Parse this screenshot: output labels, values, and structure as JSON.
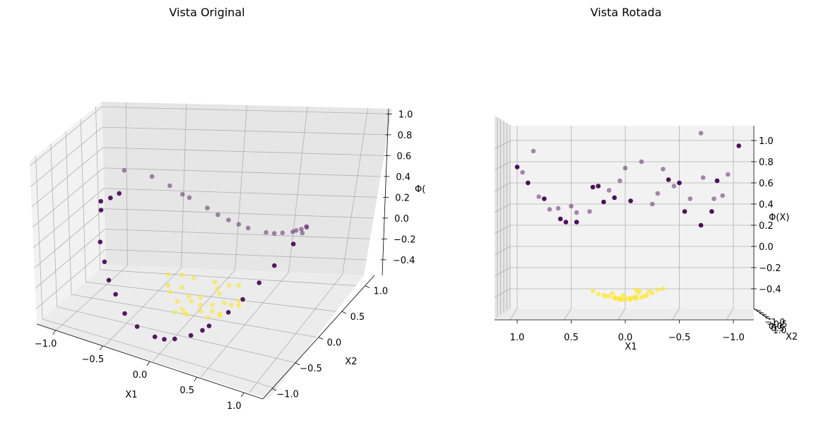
{
  "colors": {
    "class_a": "#440154",
    "class_b": "#fde725",
    "pane_left": "#f2f2f2",
    "pane_right": "#e6e6e6",
    "pane_floor": "#ececec"
  },
  "chart_data": [
    {
      "type": "scatter",
      "title": "Vista Original",
      "xlabel": "X1",
      "ylabel": "X2",
      "zlabel": "Φ(",
      "x_ticks": [
        "−1.0",
        "−0.5",
        "0.0",
        "0.5",
        "1.0"
      ],
      "y_ticks": [
        "−1.0",
        "−0.5",
        "0.0",
        "0.5",
        "1.0"
      ],
      "z_ticks": [
        "−0.4",
        "−0.2",
        "0.0",
        "0.2",
        "0.4",
        "0.6",
        "0.8",
        "1.0"
      ],
      "xlim": [
        -1.2,
        1.2
      ],
      "ylim": [
        -1.2,
        1.2
      ],
      "zlim": [
        -0.55,
        1.05
      ],
      "grid": true,
      "series": [
        {
          "points": [
            [
              -0.95,
              -0.3,
              0.9
            ],
            [
              -0.9,
              0.0,
              0.81
            ],
            [
              -0.95,
              0.2,
              0.95
            ],
            [
              -0.85,
              -0.5,
              0.97
            ],
            [
              -0.8,
              -0.6,
              0.64
            ],
            [
              -0.7,
              -0.7,
              0.49
            ],
            [
              -0.6,
              -0.8,
              0.36
            ],
            [
              -0.5,
              -0.85,
              0.25
            ],
            [
              -0.35,
              -0.95,
              0.13
            ],
            [
              -0.2,
              -0.98,
              0.04
            ],
            [
              0.0,
              -1.0,
              0.0
            ],
            [
              0.2,
              -0.98,
              0.04
            ],
            [
              0.35,
              -0.94,
              0.12
            ],
            [
              0.5,
              -0.86,
              0.25
            ],
            [
              0.65,
              -0.76,
              0.42
            ],
            [
              0.75,
              -0.66,
              0.56
            ],
            [
              0.85,
              -0.52,
              0.72
            ],
            [
              0.9,
              -0.3,
              0.81
            ],
            [
              0.95,
              0.0,
              0.9
            ],
            [
              0.9,
              0.3,
              0.81
            ],
            [
              0.8,
              0.6,
              0.64
            ],
            [
              0.7,
              0.7,
              0.49
            ],
            [
              0.55,
              0.83,
              0.3
            ],
            [
              0.4,
              0.92,
              0.16
            ],
            [
              0.2,
              0.98,
              0.04
            ],
            [
              0.0,
              1.0,
              0.0
            ],
            [
              -0.2,
              0.98,
              0.04
            ],
            [
              -0.4,
              0.92,
              0.16
            ],
            [
              -0.55,
              0.83,
              0.3
            ],
            [
              -0.7,
              0.7,
              0.49
            ],
            [
              -0.82,
              0.55,
              0.67
            ],
            [
              -0.3,
              0.95,
              0.09
            ],
            [
              0.3,
              0.95,
              0.09
            ],
            [
              0.6,
              0.8,
              0.36
            ],
            [
              0.85,
              0.5,
              0.72
            ],
            [
              -0.6,
              0.78,
              0.36
            ],
            [
              -0.92,
              -0.15,
              0.85
            ],
            [
              0.1,
              -1.0,
              0.01
            ],
            [
              -0.1,
              1.0,
              0.01
            ],
            [
              0.45,
              -0.9,
              0.2
            ]
          ]
        },
        {
          "points": [
            [
              0.0,
              0.0,
              -0.3
            ],
            [
              0.1,
              0.05,
              -0.29
            ],
            [
              -0.1,
              0.0,
              -0.29
            ],
            [
              0.05,
              -0.1,
              -0.29
            ],
            [
              -0.05,
              0.1,
              -0.29
            ],
            [
              0.15,
              -0.05,
              -0.28
            ],
            [
              -0.15,
              0.05,
              -0.28
            ],
            [
              0.2,
              0.1,
              -0.26
            ],
            [
              -0.2,
              -0.1,
              -0.26
            ],
            [
              0.1,
              0.2,
              -0.25
            ],
            [
              -0.1,
              -0.2,
              -0.25
            ],
            [
              0.25,
              -0.1,
              -0.24
            ],
            [
              -0.25,
              0.1,
              -0.24
            ],
            [
              0.05,
              0.25,
              -0.24
            ],
            [
              -0.05,
              -0.25,
              -0.24
            ],
            [
              0.3,
              0.05,
              -0.21
            ],
            [
              -0.3,
              -0.05,
              -0.21
            ],
            [
              0.2,
              -0.25,
              -0.2
            ],
            [
              -0.2,
              0.25,
              -0.2
            ],
            [
              0.0,
              0.3,
              -0.21
            ],
            [
              0.0,
              -0.3,
              -0.21
            ],
            [
              0.35,
              0.1,
              -0.17
            ],
            [
              -0.35,
              0.0,
              -0.18
            ],
            [
              0.15,
              0.3,
              -0.19
            ],
            [
              -0.1,
              -0.35,
              -0.18
            ],
            [
              0.3,
              -0.2,
              -0.17
            ],
            [
              -0.3,
              0.2,
              -0.17
            ],
            [
              0.4,
              0.0,
              -0.14
            ],
            [
              -0.4,
              0.1,
              -0.13
            ],
            [
              0.25,
              0.3,
              -0.15
            ]
          ]
        }
      ]
    },
    {
      "type": "scatter",
      "title": "Vista Rotada",
      "xlabel": "X1",
      "ylabel": "X2",
      "zlabel": "Φ(X)",
      "x_ticks": [
        "1.0",
        "0.5",
        "0.0",
        "−0.5",
        "−1.0"
      ],
      "y_ticks": [
        "−1.0",
        "−0.5",
        "0.0",
        "0.5",
        "1.0"
      ],
      "z_ticks": [
        "−0.4",
        "−0.2",
        "0.0",
        "0.2",
        "0.4",
        "0.6",
        "0.8",
        "1.0"
      ],
      "xlim": [
        -1.2,
        1.2
      ],
      "ylim": [
        -1.2,
        1.2
      ],
      "zlim": [
        -0.55,
        1.05
      ],
      "grid": true,
      "series": [
        {
          "points": [
            [
              1.0,
              0.0,
              0.75
            ],
            [
              0.95,
              0.3,
              0.7
            ],
            [
              0.9,
              -0.4,
              0.6
            ],
            [
              0.8,
              0.5,
              0.47
            ],
            [
              0.75,
              -0.5,
              0.45
            ],
            [
              0.7,
              0.6,
              0.35
            ],
            [
              0.62,
              0.7,
              0.36
            ],
            [
              0.55,
              -0.7,
              0.23
            ],
            [
              0.5,
              0.8,
              0.38
            ],
            [
              0.45,
              -0.85,
              0.23
            ],
            [
              0.33,
              0.9,
              0.33
            ],
            [
              0.2,
              -0.95,
              0.42
            ],
            [
              0.15,
              0.95,
              0.53
            ],
            [
              0.1,
              -0.98,
              0.46
            ],
            [
              0.0,
              1.0,
              0.74
            ],
            [
              -0.05,
              -1.0,
              0.43
            ],
            [
              -0.15,
              0.98,
              0.8
            ],
            [
              -0.3,
              0.95,
              0.5
            ],
            [
              -0.4,
              -0.9,
              0.63
            ],
            [
              -0.45,
              0.88,
              0.57
            ],
            [
              -0.55,
              -0.8,
              0.33
            ],
            [
              -0.6,
              0.78,
              0.45
            ],
            [
              -0.7,
              -0.7,
              0.2
            ],
            [
              -0.72,
              0.68,
              0.65
            ],
            [
              -0.8,
              -0.58,
              0.33
            ],
            [
              -0.82,
              0.55,
              0.45
            ],
            [
              -0.85,
              -0.5,
              0.62
            ],
            [
              -0.95,
              0.3,
              0.68
            ],
            [
              -1.05,
              -0.1,
              0.95
            ],
            [
              -0.7,
              0.7,
              1.07
            ],
            [
              0.45,
              0.85,
              0.32
            ],
            [
              0.6,
              -0.8,
              0.26
            ],
            [
              0.85,
              0.5,
              0.9
            ],
            [
              -0.25,
              0.96,
              0.4
            ],
            [
              0.3,
              -0.93,
              0.56
            ],
            [
              -0.9,
              0.4,
              0.48
            ],
            [
              0.05,
              0.99,
              0.62
            ],
            [
              0.25,
              -0.96,
              0.57
            ],
            [
              -0.5,
              -0.85,
              0.6
            ],
            [
              -0.35,
              0.92,
              0.73
            ]
          ]
        },
        {
          "points": [
            [
              0.15,
              0.0,
              -0.47
            ],
            [
              0.1,
              0.05,
              -0.49
            ],
            [
              0.05,
              -0.1,
              -0.5
            ],
            [
              0.0,
              0.0,
              -0.5
            ],
            [
              -0.05,
              0.1,
              -0.5
            ],
            [
              -0.1,
              0.0,
              -0.49
            ],
            [
              -0.15,
              -0.05,
              -0.48
            ],
            [
              -0.2,
              0.1,
              -0.46
            ],
            [
              0.2,
              -0.1,
              -0.46
            ],
            [
              -0.25,
              0.0,
              -0.44
            ],
            [
              0.25,
              0.1,
              -0.45
            ],
            [
              -0.3,
              0.15,
              -0.41
            ],
            [
              0.3,
              -0.05,
              -0.42
            ],
            [
              -0.1,
              0.2,
              -0.48
            ],
            [
              0.1,
              -0.2,
              -0.48
            ],
            [
              -0.05,
              -0.25,
              -0.49
            ],
            [
              0.05,
              0.25,
              -0.49
            ],
            [
              -0.18,
              -0.2,
              -0.47
            ],
            [
              0.18,
              0.2,
              -0.47
            ],
            [
              -0.12,
              0.3,
              -0.44
            ],
            [
              0.12,
              -0.3,
              -0.44
            ],
            [
              -0.08,
              0.05,
              -0.48
            ],
            [
              0.08,
              -0.05,
              -0.49
            ],
            [
              -0.03,
              0.15,
              -0.49
            ],
            [
              0.03,
              -0.15,
              -0.5
            ],
            [
              -0.22,
              -0.1,
              -0.42
            ],
            [
              -0.35,
              0.1,
              -0.4
            ],
            [
              -0.1,
              0.1,
              -0.41
            ],
            [
              -0.13,
              -0.05,
              -0.42
            ],
            [
              0.02,
              0.02,
              -0.46
            ]
          ]
        }
      ]
    }
  ]
}
